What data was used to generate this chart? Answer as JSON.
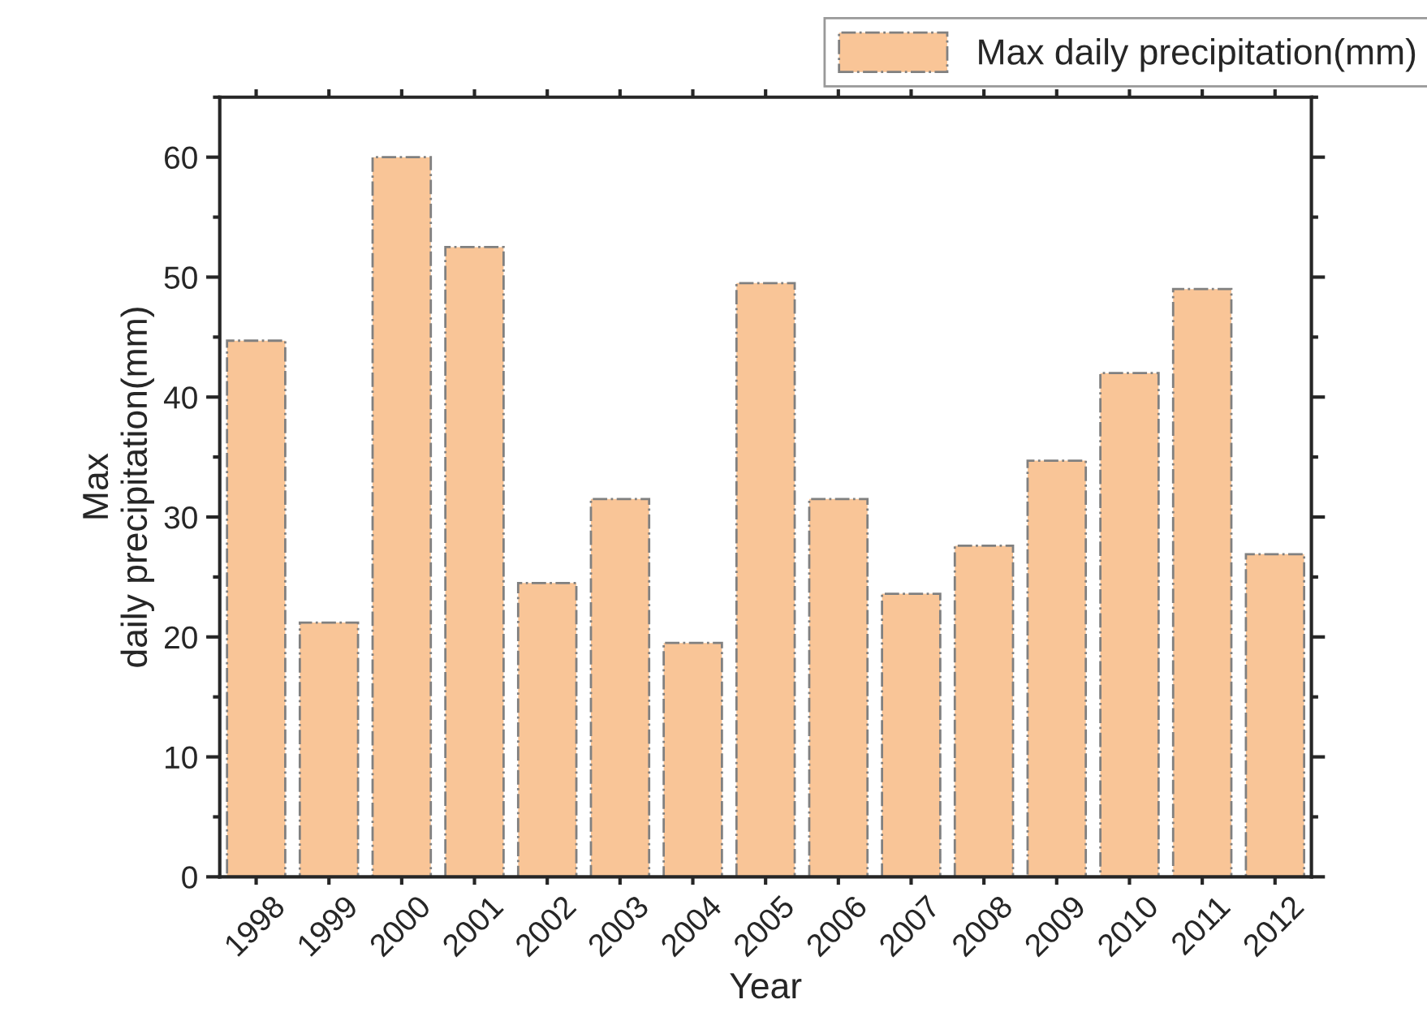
{
  "chart_data": {
    "type": "bar",
    "xlabel": "Year",
    "ylabel": "Max\ndaily precipitation(mm)",
    "categories": [
      "1998",
      "1999",
      "2000",
      "2001",
      "2002",
      "2003",
      "2004",
      "2005",
      "2006",
      "2007",
      "2008",
      "2009",
      "2010",
      "2011",
      "2012"
    ],
    "series": [
      {
        "name": "Max daily precipitation(mm)",
        "color": "#f9c597",
        "values": [
          44.7,
          21.2,
          60.0,
          52.5,
          24.5,
          31.5,
          19.5,
          49.5,
          31.5,
          23.6,
          27.6,
          34.7,
          42.0,
          49.0,
          26.9
        ]
      }
    ],
    "ylim": [
      0,
      65
    ],
    "yticks": [
      0,
      10,
      20,
      30,
      40,
      50,
      60
    ],
    "grid": false,
    "legend": "top right"
  }
}
